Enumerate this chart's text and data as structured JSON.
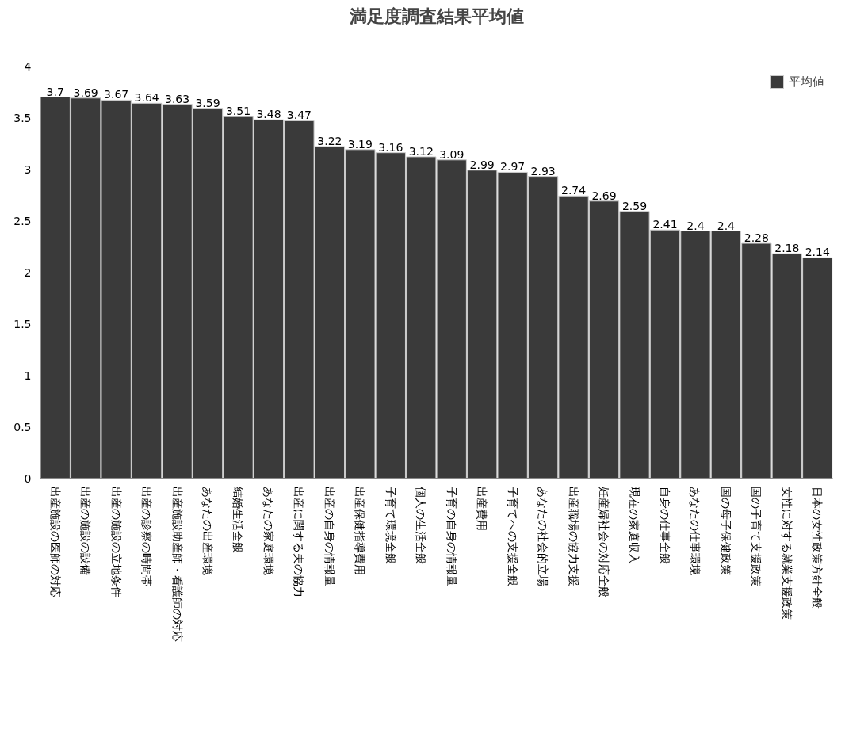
{
  "chart_data": {
    "type": "bar",
    "title": "満足度調査結果平均値",
    "categories": [
      "出産施設の医師の対応",
      "出産の施設の設備",
      "出産の施設の立地条件",
      "出産の診察の時間帯",
      "出産施設助産師・看護師の対応",
      "あなたの出産環境",
      "結婚生活全般",
      "あなたの家庭環境",
      "出産に関する夫の協力",
      "出産の自身の情報量",
      "出産保健指導費用",
      "子育て環境全般",
      "個人の生活全般",
      "子育の自身の情報量",
      "出産費用",
      "子育てへの支援全般",
      "あなたの社会的立場",
      "出産職場の協力支援",
      "妊産婦社会の対応全般",
      "現在の家庭収入",
      "自身の仕事全般",
      "あなたの仕事環境",
      "国の母子保健政策",
      "国の子育て支援政策",
      "女性に対する就業支援政策",
      "日本の女性政策方針全般"
    ],
    "series": [
      {
        "name": "平均値",
        "color": "#3a3a3a",
        "values": [
          3.7,
          3.69,
          3.67,
          3.64,
          3.63,
          3.59,
          3.51,
          3.48,
          3.47,
          3.22,
          3.19,
          3.16,
          3.12,
          3.09,
          2.99,
          2.97,
          2.93,
          2.74,
          2.69,
          2.59,
          2.41,
          2.4,
          2.4,
          2.28,
          2.18,
          2.14
        ]
      }
    ],
    "ylim": [
      0,
      4
    ],
    "yticks": [
      0,
      0.5,
      1,
      1.5,
      2,
      2.5,
      3,
      3.5,
      4
    ],
    "grid": false,
    "legend": "top right",
    "data_labels": true
  }
}
